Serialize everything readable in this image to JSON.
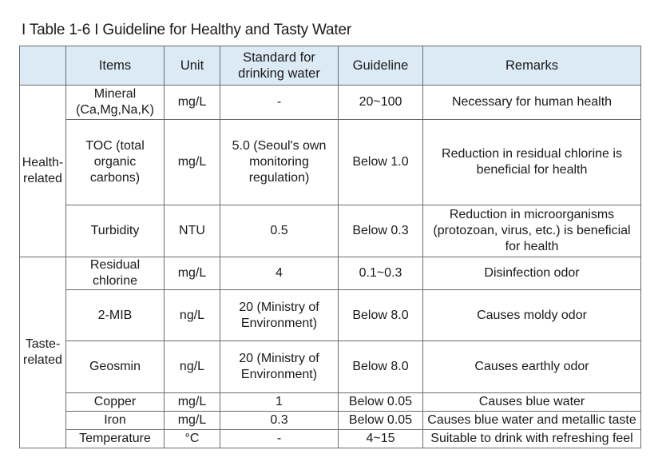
{
  "title": "I Table 1-6 I Guideline for Healthy and Tasty Water",
  "headers": {
    "category": "",
    "items": "Items",
    "unit": "Unit",
    "standard": "Standard for drinking water",
    "guideline": "Guideline",
    "remarks": "Remarks"
  },
  "groups": {
    "health": "Health-related",
    "taste": "Taste-related"
  },
  "rows": [
    {
      "item": "Mineral (Ca,Mg,Na,K)",
      "unit": "mg/L",
      "standard": "-",
      "guideline": "20~100",
      "remarks": "Necessary for human health"
    },
    {
      "item": "TOC (total organic carbons)",
      "unit": "mg/L",
      "standard": "5.0 (Seoul's own monitoring regulation)",
      "guideline": "Below 1.0",
      "remarks": "Reduction in residual chlorine is beneficial for health"
    },
    {
      "item": "Turbidity",
      "unit": "NTU",
      "standard": "0.5",
      "guideline": "Below 0.3",
      "remarks": "Reduction in microorganisms (protozoan, virus, etc.) is beneficial for health"
    },
    {
      "item": "Residual chlorine",
      "unit": "mg/L",
      "standard": "4",
      "guideline": "0.1~0.3",
      "remarks": "Disinfection odor"
    },
    {
      "item": "2-MIB",
      "unit": "ng/L",
      "standard": "20 (Ministry of Environment)",
      "guideline": "Below 8.0",
      "remarks": "Causes moldy odor"
    },
    {
      "item": "Geosmin",
      "unit": "ng/L",
      "standard": "20 (Ministry of Environment)",
      "guideline": "Below 8.0",
      "remarks": "Causes earthly odor"
    },
    {
      "item": "Copper",
      "unit": "mg/L",
      "standard": "1",
      "guideline": "Below 0.05",
      "remarks": "Causes blue water"
    },
    {
      "item": "Iron",
      "unit": "mg/L",
      "standard": "0.3",
      "guideline": "Below 0.05",
      "remarks": "Causes blue water and metallic taste"
    },
    {
      "item": "Temperature",
      "unit": "°C",
      "standard": "-",
      "guideline": "4~15",
      "remarks": "Suitable to drink with refreshing feel"
    }
  ]
}
